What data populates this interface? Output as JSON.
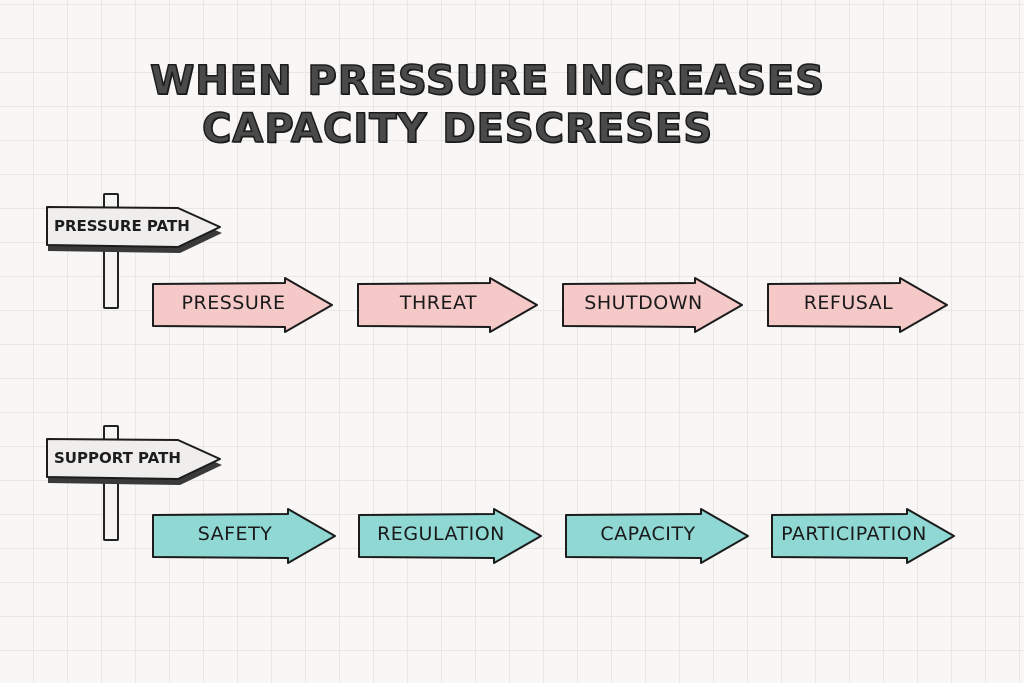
{
  "title": {
    "line1": "WHEN PRESSURE INCREASES",
    "line2": "CAPACITY DESCRESES"
  },
  "colors": {
    "pressure": "#f6c9c9",
    "support": "#8fd8d4",
    "sign": "#efeeec",
    "outline": "#1c1c1c"
  },
  "rows": [
    {
      "sign": "PRESSURE PATH",
      "steps": [
        "PRESSURE",
        "THREAT",
        "SHUTDOWN",
        "REFUSAL"
      ]
    },
    {
      "sign": "SUPPORT PATH",
      "steps": [
        "SAFETY",
        "REGULATION",
        "CAPACITY",
        "PARTICIPATION"
      ]
    }
  ]
}
